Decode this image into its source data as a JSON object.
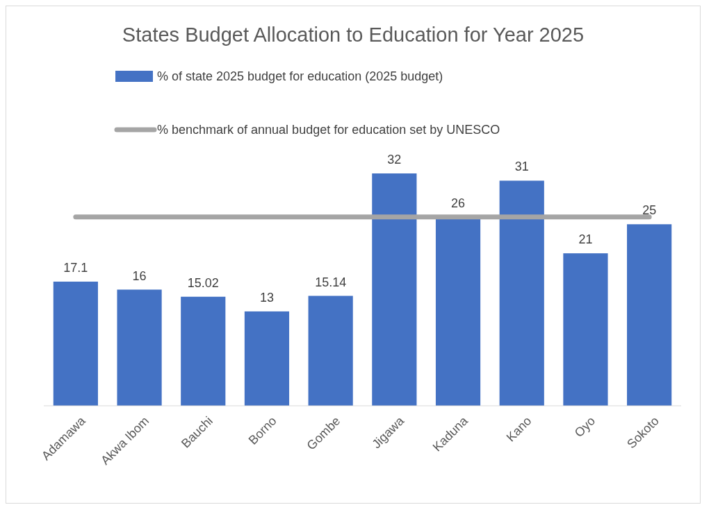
{
  "chart_data": {
    "type": "bar",
    "title": "States Budget Allocation to Education for Year 2025",
    "categories": [
      "Adamawa",
      "Akwa Ibom",
      "Bauchi",
      "Borno",
      "Gombe",
      "Jigawa",
      "Kaduna",
      "Kano",
      "Oyo",
      "Sokoto"
    ],
    "series": [
      {
        "name": "% of state 2025 budget for education (2025 budget)",
        "color": "#4472c4",
        "values": [
          17.1,
          16,
          15.02,
          13,
          15.14,
          32,
          26,
          31,
          21,
          25
        ],
        "value_labels": [
          "17.1",
          "16",
          "15.02",
          "13",
          "15.14",
          "32",
          "26",
          "31",
          "21",
          "25"
        ]
      },
      {
        "name": "% benchmark of annual budget for education set by UNESCO",
        "type": "line",
        "color": "#a5a5a5",
        "values": [
          26,
          26,
          26,
          26,
          26,
          26,
          26,
          26,
          26,
          26
        ]
      }
    ],
    "legend": "top",
    "marker": "none",
    "line_style": "solid"
  }
}
